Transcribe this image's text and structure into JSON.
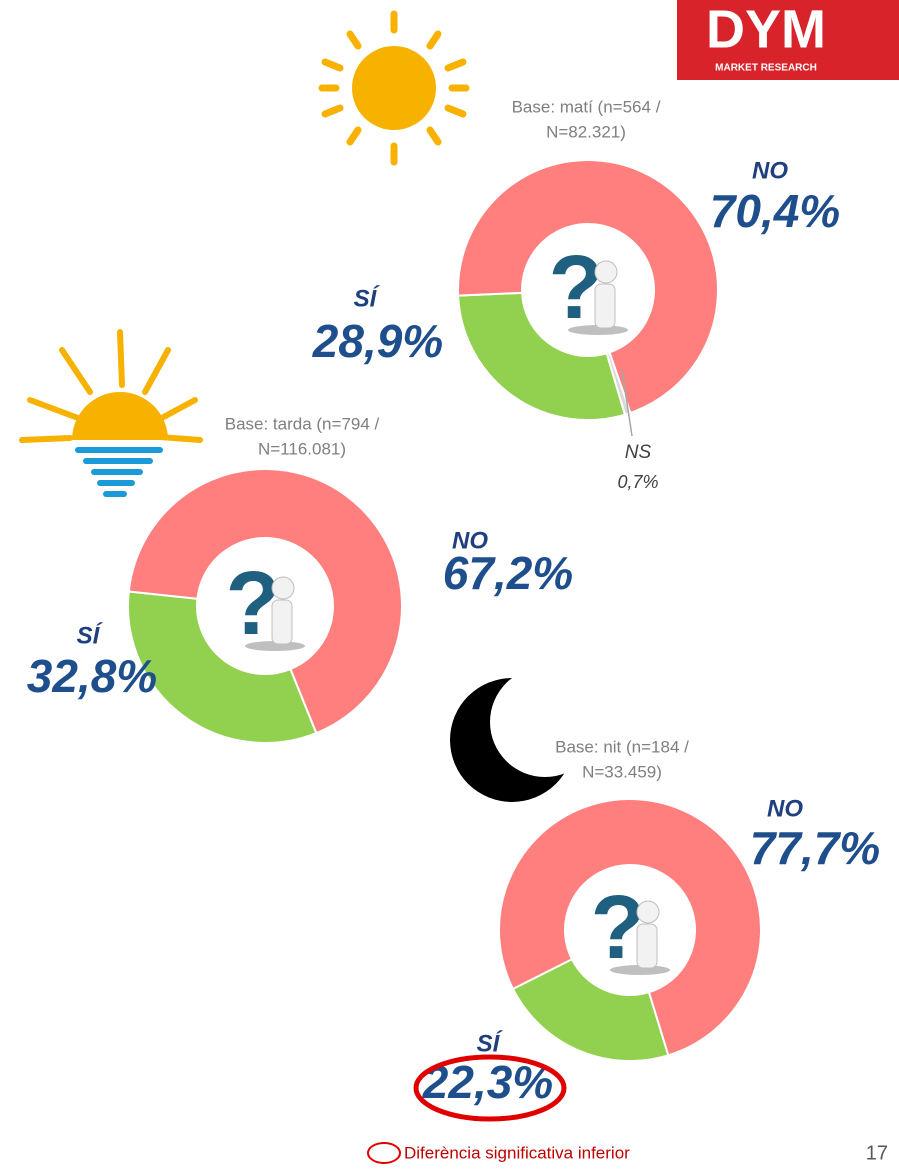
{
  "logo": {
    "name": "DYM",
    "tagline": "MARKET RESEARCH"
  },
  "footer": {
    "legend": "Diferència significativa inferior",
    "page_number": 17
  },
  "chart_data": [
    {
      "type": "donut",
      "subtitle": [
        "Base: matí (n=564 /",
        "N=82.321)"
      ],
      "categories": [
        "SÍ",
        "NO",
        "NS"
      ],
      "values": [
        28.9,
        70.4,
        0.7
      ],
      "value_labels": [
        "28,9%",
        "70,4%",
        "0,7%"
      ],
      "colors": [
        "#92d050",
        "#ff7f7f",
        "#d9d9d9"
      ]
    },
    {
      "type": "donut",
      "subtitle": [
        "Base: tarda (n=794 /",
        "N=116.081)"
      ],
      "categories": [
        "SÍ",
        "NO"
      ],
      "values": [
        32.8,
        67.2
      ],
      "value_labels": [
        "32,8%",
        "67,2%"
      ],
      "colors": [
        "#92d050",
        "#ff7f7f"
      ]
    },
    {
      "type": "donut",
      "subtitle": [
        "Base: nit (n=184 /",
        "N=33.459)"
      ],
      "categories": [
        "SÍ",
        "NO"
      ],
      "values": [
        22.3,
        77.7
      ],
      "value_labels": [
        "22,3%",
        "77,7%"
      ],
      "colors": [
        "#92d050",
        "#ff7f7f"
      ]
    }
  ]
}
